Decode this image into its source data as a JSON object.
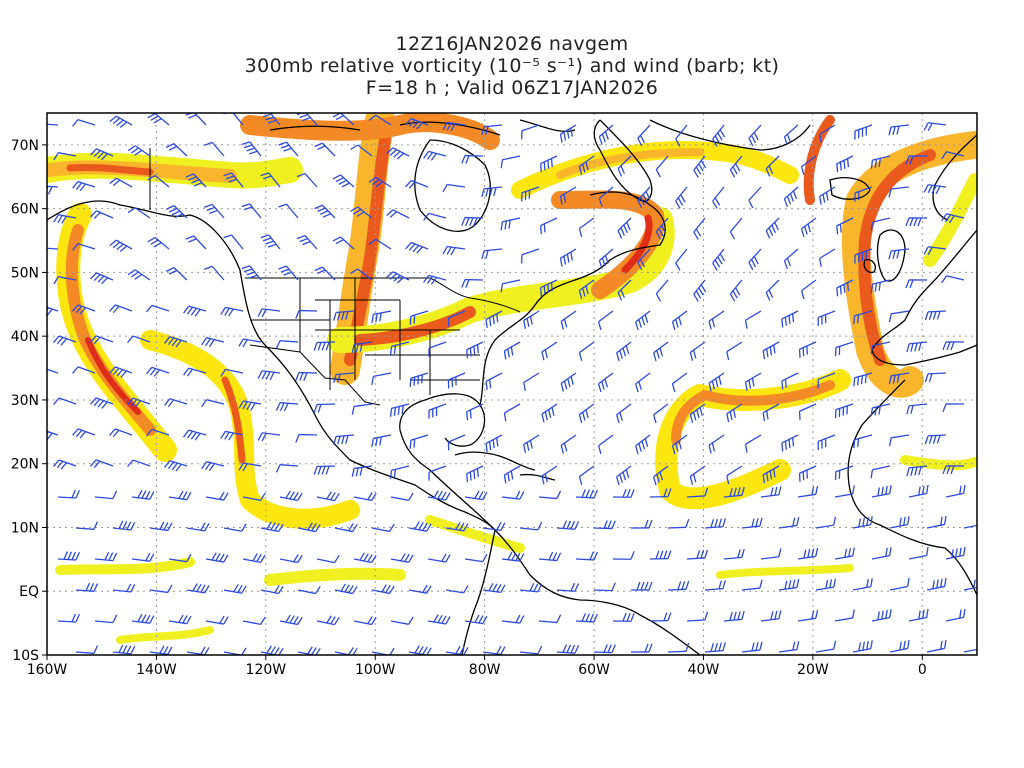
{
  "header": {
    "line1": "12Z16JAN2026 navgem",
    "line2": "300mb relative vorticity (10⁻⁵ s⁻¹) and wind (barb; kt)",
    "line3": "F=18 h ; Valid 06Z17JAN2026"
  },
  "map": {
    "lon_range": [
      -160,
      10
    ],
    "lat_range": [
      -10,
      75
    ],
    "x_ticks": [
      {
        "lon": -160,
        "label": "160W"
      },
      {
        "lon": -140,
        "label": "140W"
      },
      {
        "lon": -120,
        "label": "120W"
      },
      {
        "lon": -100,
        "label": "100W"
      },
      {
        "lon": -80,
        "label": "80W"
      },
      {
        "lon": -60,
        "label": "60W"
      },
      {
        "lon": -40,
        "label": "40W"
      },
      {
        "lon": -20,
        "label": "20W"
      },
      {
        "lon": 0,
        "label": "0"
      }
    ],
    "y_ticks": [
      {
        "lat": -10,
        "label": "10S"
      },
      {
        "lat": 0,
        "label": "EQ"
      },
      {
        "lat": 10,
        "label": "10N"
      },
      {
        "lat": 20,
        "label": "20N"
      },
      {
        "lat": 30,
        "label": "30N"
      },
      {
        "lat": 40,
        "label": "40N"
      },
      {
        "lat": 50,
        "label": "50N"
      },
      {
        "lat": 60,
        "label": "60N"
      },
      {
        "lat": 70,
        "label": "70N"
      }
    ],
    "colors": {
      "light_yellow": "#f0f020",
      "yellow": "#fbe60f",
      "light_orange": "#f9b52b",
      "orange": "#f48a25",
      "red_orange": "#ea5a1c",
      "red": "#df2d18",
      "barb": "#2b4bdc",
      "coast": "#000000",
      "grid": "#9a9a9a"
    }
  }
}
